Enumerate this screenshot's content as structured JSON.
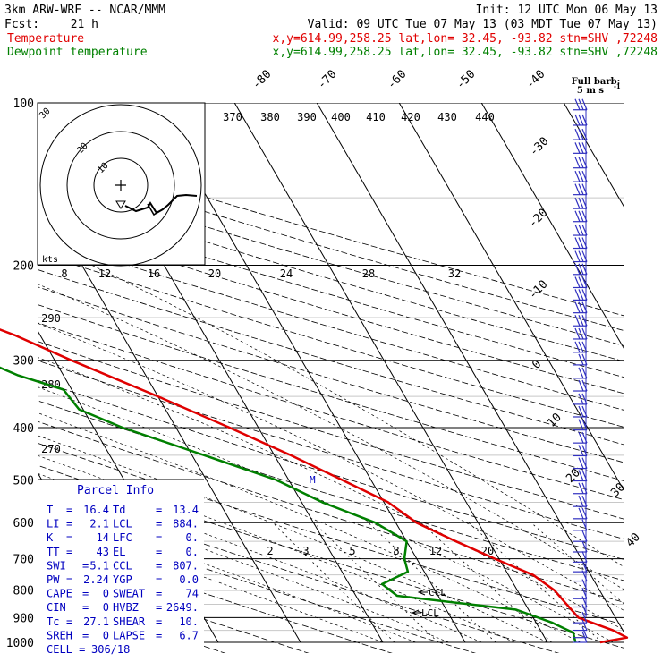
{
  "header": {
    "model": "3km ARW-WRF -- NCAR/MMM",
    "init": "Init: 12 UTC Mon 06 May 13",
    "fcst_label": "Fcst:",
    "fcst_value": "21 h",
    "valid": "Valid: 09 UTC Tue 07 May 13 (03 MDT Tue 07 May 13)",
    "temp_label": "Temperature",
    "temp_info": "x,y=614.99,258.25   lat,lon= 32.45, -93.82  stn=SHV ,72248",
    "dew_label": "Dewpoint temperature",
    "dew_info": "x,y=614.99,258.25   lat,lon= 32.45, -93.82  stn=SHV ,72248"
  },
  "full_barb": {
    "line1": "Full barb:",
    "line2": "5 m s",
    "sup": "-1"
  },
  "hodograph": {
    "unit": "kts",
    "rings": [
      "10",
      "20",
      "30"
    ],
    "ring_values_kts": [
      10,
      20,
      30
    ]
  },
  "parcel": {
    "title": "Parcel Info",
    "rows": [
      [
        "T",
        "=",
        "16.4",
        "Td",
        "=",
        "13.4"
      ],
      [
        "LI",
        "=",
        "2.1",
        "LCL",
        "=",
        "884."
      ],
      [
        "K",
        "=",
        "14",
        "LFC",
        "=",
        "0."
      ],
      [
        "TT",
        "=",
        "43",
        "EL",
        "=",
        "0."
      ],
      [
        "SWI",
        "=",
        "5.1",
        "CCL",
        "=",
        "807."
      ],
      [
        "PW",
        "=",
        "2.24",
        "YGP",
        "=",
        "0.0"
      ],
      [
        "CAPE",
        "=",
        "0",
        "SWEAT",
        "=",
        "74"
      ],
      [
        "CIN",
        "=",
        "0",
        "HVBZ",
        "=",
        "2649."
      ],
      [
        "Tc",
        "=",
        "27.1",
        "SHEAR",
        "=",
        "10."
      ],
      [
        "SREH",
        "=",
        "0",
        "LAPSE",
        "=",
        "6.7"
      ]
    ],
    "cell_label": "CELL =",
    "cell_value": "306/18"
  },
  "ccl_label": "CCL",
  "lcl_label": "LCL",
  "m_label": "M",
  "colors": {
    "temperature": "#e00000",
    "dewpoint": "#008000",
    "barbs": "#3030c0",
    "parcel_text": "#0000c0"
  },
  "chart_data": {
    "type": "line",
    "chart_kind": "skew-T log-p",
    "y_axis": {
      "ticks": [
        100,
        200,
        300,
        400,
        500,
        600,
        700,
        800,
        900,
        1000
      ],
      "range": [
        100,
        1000
      ],
      "scale": "log"
    },
    "isotherm_labels": [
      "-80",
      "-70",
      "-60",
      "-50",
      "-40",
      "-30",
      "-20",
      "-10",
      "0",
      "10",
      "20",
      "30",
      "40"
    ],
    "isotherm_values": [
      -80,
      -70,
      -60,
      -50,
      -40,
      -30,
      -20,
      -10,
      0,
      10,
      20,
      30,
      40
    ],
    "theta_labels_top": [
      "370",
      "380",
      "390",
      "400",
      "410",
      "420",
      "430",
      "440"
    ],
    "theta_labels_left": [
      "290",
      "280",
      "270"
    ],
    "mixing_ratio_labels_200": [
      "8",
      "12",
      "16",
      "20",
      "24",
      "28",
      "32"
    ],
    "mixing_ratio_labels_700": [
      "2",
      "3",
      "5",
      "8",
      "12",
      "20"
    ],
    "series": [
      {
        "name": "Temperature",
        "points": [
          [
            1000,
            16.4
          ],
          [
            980,
            20.0
          ],
          [
            950,
            18.8
          ],
          [
            900,
            15.5
          ],
          [
            850,
            15.0
          ],
          [
            800,
            14.5
          ],
          [
            750,
            13.0
          ],
          [
            700,
            9.5
          ],
          [
            650,
            6.0
          ],
          [
            600,
            2.5
          ],
          [
            550,
            0.5
          ],
          [
            500,
            -3.5
          ],
          [
            450,
            -8.0
          ],
          [
            400,
            -13.5
          ],
          [
            350,
            -20.0
          ],
          [
            300,
            -28.0
          ],
          [
            270,
            -33.0
          ],
          [
            250,
            -37.5
          ],
          [
            220,
            -43.5
          ],
          [
            200,
            -49.0
          ],
          [
            180,
            -52.0
          ],
          [
            150,
            -58.0
          ],
          [
            130,
            -60.0
          ],
          [
            110,
            -63.5
          ],
          [
            100,
            -65.0
          ]
        ]
      },
      {
        "name": "Dewpoint temperature",
        "points": [
          [
            1000,
            13.4
          ],
          [
            960,
            13.8
          ],
          [
            920,
            12.0
          ],
          [
            870,
            8.5
          ],
          [
            820,
            -5.0
          ],
          [
            780,
            -6.0
          ],
          [
            740,
            -2.0
          ],
          [
            700,
            -1.5
          ],
          [
            650,
            0.0
          ],
          [
            600,
            -2.5
          ],
          [
            550,
            -7.5
          ],
          [
            500,
            -11.5
          ],
          [
            450,
            -18.5
          ],
          [
            400,
            -26.5
          ],
          [
            370,
            -30.5
          ],
          [
            340,
            -31.0
          ],
          [
            320,
            -35.5
          ],
          [
            290,
            -40.5
          ],
          [
            250,
            -55.0
          ],
          [
            230,
            -58.0
          ],
          [
            200,
            -61.5
          ],
          [
            170,
            -72.5
          ],
          [
            150,
            -77.5
          ],
          [
            120,
            -79.5
          ],
          [
            100,
            -80.0
          ]
        ]
      }
    ],
    "wind_barbs_pressure": [
      103,
      110,
      117,
      124,
      132,
      140,
      148,
      157,
      166,
      176,
      186,
      197,
      208,
      220,
      232,
      245,
      259,
      274,
      290,
      306,
      324,
      342,
      362,
      382,
      404,
      427,
      451,
      476,
      502,
      530,
      560,
      590,
      620,
      650,
      680,
      710,
      740,
      770,
      800,
      830,
      860,
      890,
      920,
      950,
      980,
      1000
    ]
  }
}
